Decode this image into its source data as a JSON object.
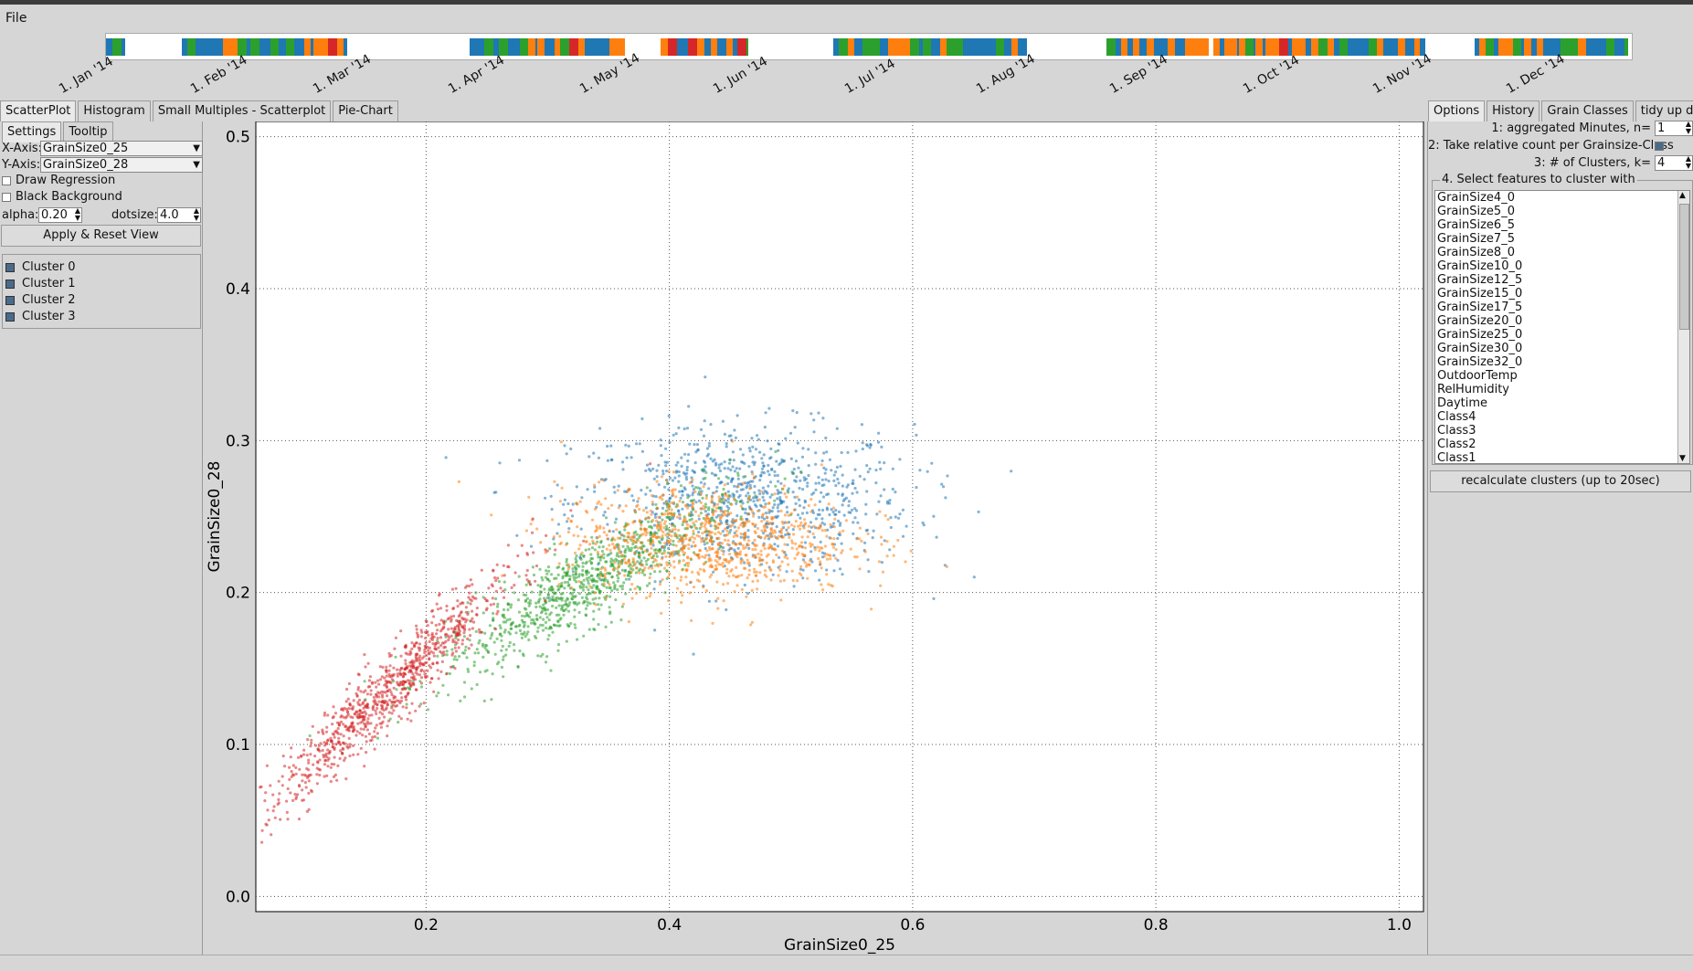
{
  "menu": {
    "file": "File"
  },
  "timeline": {
    "months": [
      "1. Jan '14",
      "1. Feb '14",
      "1. Mar '14",
      "1. Apr '14",
      "1. May '14",
      "1. Jun '14",
      "1. Jul '14",
      "1. Aug '14",
      "1. Sep '14",
      "1. Oct '14",
      "1. Nov '14",
      "1. Dec '14"
    ]
  },
  "left_tabs": [
    "ScatterPlot",
    "Histogram",
    "Small Multiples - Scatterplot",
    "Pie-Chart"
  ],
  "sub_tabs": [
    "Settings",
    "Tooltip"
  ],
  "settings": {
    "x_label": "X-Axis:",
    "x_value": "GrainSize0_25",
    "y_label": "Y-Axis:",
    "y_value": "GrainSize0_28",
    "draw_regression": "Draw Regression",
    "black_background": "Black Background",
    "alpha_label": "alpha:",
    "alpha_value": "0.20",
    "dotsize_label": "dotsize:",
    "dotsize_value": "4.0",
    "apply_button": "Apply & Reset View"
  },
  "clusters": [
    "Cluster 0",
    "Cluster 1",
    "Cluster 2",
    "Cluster 3"
  ],
  "right_tabs": [
    "Options",
    "History",
    "Grain Classes",
    "tidy up data"
  ],
  "options": {
    "aggregated_label": "1: aggregated Minutes, n=",
    "aggregated_value": "1",
    "relative_label": "2: Take relative count per Grainsize-Class",
    "clusters_label": "3: # of Clusters, k=",
    "clusters_value": "4",
    "features_title": "4. Select features to cluster with",
    "features": [
      "GrainSize4_0",
      "GrainSize5_0",
      "GrainSize6_5",
      "GrainSize7_5",
      "GrainSize8_0",
      "GrainSize10_0",
      "GrainSize12_5",
      "GrainSize15_0",
      "GrainSize17_5",
      "GrainSize20_0",
      "GrainSize25_0",
      "GrainSize30_0",
      "GrainSize32_0",
      "OutdoorTemp",
      "RelHumidity",
      "Daytime",
      "Class4",
      "Class3",
      "Class2",
      "Class1"
    ],
    "recalc_button": "recalculate clusters (up to 20sec)"
  },
  "colors": {
    "cluster0": "#1f77b4",
    "cluster1": "#ff7f0e",
    "cluster2": "#2ca02c",
    "cluster3": "#d62728"
  },
  "chart_data": {
    "type": "scatter",
    "xlabel": "GrainSize0_25",
    "ylabel": "GrainSize0_28",
    "xlim": [
      0.06,
      1.02
    ],
    "ylim": [
      -0.01,
      0.51
    ],
    "xticks": [
      "0.2",
      "0.4",
      "0.6",
      "0.8",
      "1.0"
    ],
    "yticks": [
      "0.0",
      "0.1",
      "0.2",
      "0.3",
      "0.4",
      "0.5"
    ],
    "grid": true,
    "series": [
      {
        "name": "Cluster 0",
        "color": "#1f77b4",
        "center": [
          0.46,
          0.26
        ],
        "spread": [
          0.07,
          0.025
        ]
      },
      {
        "name": "Cluster 1",
        "color": "#ff7f0e",
        "center": [
          0.43,
          0.235
        ],
        "spread": [
          0.06,
          0.018
        ]
      },
      {
        "name": "Cluster 2",
        "color": "#2ca02c",
        "center": [
          0.33,
          0.205
        ],
        "spread": [
          0.06,
          0.02
        ]
      },
      {
        "name": "Cluster 3",
        "color": "#d62728",
        "center": [
          0.17,
          0.135
        ],
        "spread": [
          0.05,
          0.025
        ]
      }
    ]
  }
}
